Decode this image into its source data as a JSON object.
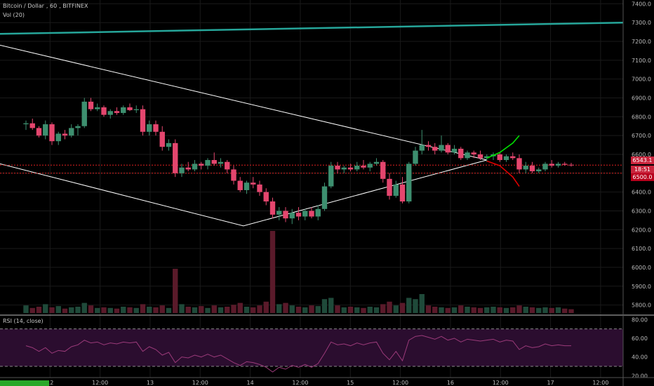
{
  "header": {
    "symbol": "Bitcoin / Dollar",
    "interval": "60",
    "exchange": "BITFINEX",
    "volume_label": "Vol (20)",
    "rsi_label": "RSI (14, close)"
  },
  "badges": {
    "price_1": "6543.1",
    "countdown": "18:51",
    "price_2": "6500.0"
  },
  "corner_badge": "",
  "colors": {
    "background": "#000000",
    "grid": "#1a1a1a",
    "up_candle": "#3d8f6f",
    "down_candle": "#e4466e",
    "trendline": "#ffffff",
    "long_ma": "#26a69a",
    "support_line": "#e02020",
    "projection_up": "#00e000",
    "projection_down": "#e00000",
    "rsi_band": "#2b0d2f",
    "rsi_line": "#9b3a7a"
  },
  "chart_data": {
    "type": "candlestick",
    "symbol": "Bitcoin / Dollar",
    "interval": "60",
    "exchange": "BITFINEX",
    "price_axis": {
      "ticks": [
        5800,
        5900,
        6000,
        6100,
        6200,
        6300,
        6400,
        6500,
        6600,
        6700,
        6800,
        6900,
        7000,
        7100,
        7200,
        7300,
        7400
      ],
      "ylim": [
        5750,
        7420
      ]
    },
    "time_axis": {
      "labels": [
        "12",
        "12:00",
        "13",
        "12:00",
        "14",
        "12:00",
        "15",
        "12:00",
        "16",
        "12:00",
        "17",
        "12:00"
      ],
      "xlim": [
        -4,
        92
      ]
    },
    "candles": [
      [
        6760,
        6780,
        6730,
        6765
      ],
      [
        6765,
        6790,
        6730,
        6740
      ],
      [
        6740,
        6750,
        6690,
        6700
      ],
      [
        6700,
        6780,
        6680,
        6760
      ],
      [
        6760,
        6770,
        6650,
        6670
      ],
      [
        6670,
        6720,
        6650,
        6710
      ],
      [
        6710,
        6730,
        6680,
        6700
      ],
      [
        6700,
        6760,
        6690,
        6740
      ],
      [
        6740,
        6760,
        6700,
        6750
      ],
      [
        6750,
        6900,
        6740,
        6880
      ],
      [
        6880,
        6900,
        6830,
        6840
      ],
      [
        6840,
        6870,
        6830,
        6850
      ],
      [
        6850,
        6860,
        6800,
        6810
      ],
      [
        6810,
        6840,
        6790,
        6830
      ],
      [
        6830,
        6850,
        6810,
        6820
      ],
      [
        6820,
        6860,
        6810,
        6850
      ],
      [
        6850,
        6870,
        6830,
        6835
      ],
      [
        6835,
        6860,
        6820,
        6840
      ],
      [
        6840,
        6860,
        6700,
        6720
      ],
      [
        6720,
        6780,
        6700,
        6760
      ],
      [
        6760,
        6780,
        6700,
        6720
      ],
      [
        6720,
        6750,
        6620,
        6640
      ],
      [
        6640,
        6680,
        6620,
        6660
      ],
      [
        6660,
        6680,
        6480,
        6500
      ],
      [
        6500,
        6550,
        6480,
        6530
      ],
      [
        6530,
        6560,
        6510,
        6520
      ],
      [
        6520,
        6570,
        6510,
        6550
      ],
      [
        6550,
        6560,
        6520,
        6540
      ],
      [
        6540,
        6580,
        6520,
        6570
      ],
      [
        6570,
        6610,
        6540,
        6550
      ],
      [
        6550,
        6580,
        6530,
        6560
      ],
      [
        6560,
        6570,
        6500,
        6520
      ],
      [
        6520,
        6540,
        6440,
        6460
      ],
      [
        6460,
        6480,
        6400,
        6410
      ],
      [
        6410,
        6460,
        6390,
        6450
      ],
      [
        6450,
        6480,
        6420,
        6440
      ],
      [
        6440,
        6460,
        6380,
        6400
      ],
      [
        6400,
        6420,
        6330,
        6350
      ],
      [
        6350,
        6370,
        6260,
        6280
      ],
      [
        6280,
        6320,
        6250,
        6300
      ],
      [
        6300,
        6320,
        6240,
        6260
      ],
      [
        6260,
        6310,
        6230,
        6290
      ],
      [
        6290,
        6320,
        6250,
        6270
      ],
      [
        6270,
        6310,
        6250,
        6300
      ],
      [
        6300,
        6320,
        6260,
        6270
      ],
      [
        6270,
        6330,
        6250,
        6310
      ],
      [
        6310,
        6450,
        6300,
        6430
      ],
      [
        6430,
        6560,
        6420,
        6540
      ],
      [
        6540,
        6560,
        6500,
        6520
      ],
      [
        6520,
        6540,
        6500,
        6530
      ],
      [
        6530,
        6550,
        6510,
        6520
      ],
      [
        6520,
        6560,
        6510,
        6540
      ],
      [
        6540,
        6570,
        6520,
        6530
      ],
      [
        6530,
        6560,
        6510,
        6550
      ],
      [
        6550,
        6580,
        6540,
        6560
      ],
      [
        6560,
        6570,
        6450,
        6470
      ],
      [
        6470,
        6500,
        6360,
        6380
      ],
      [
        6380,
        6460,
        6370,
        6440
      ],
      [
        6440,
        6480,
        6340,
        6350
      ],
      [
        6350,
        6560,
        6340,
        6550
      ],
      [
        6550,
        6640,
        6540,
        6620
      ],
      [
        6620,
        6730,
        6600,
        6650
      ],
      [
        6650,
        6670,
        6620,
        6640
      ],
      [
        6640,
        6660,
        6600,
        6620
      ],
      [
        6620,
        6700,
        6610,
        6650
      ],
      [
        6650,
        6660,
        6600,
        6610
      ],
      [
        6610,
        6650,
        6600,
        6630
      ],
      [
        6630,
        6640,
        6570,
        6580
      ],
      [
        6580,
        6620,
        6570,
        6610
      ],
      [
        6610,
        6620,
        6580,
        6600
      ],
      [
        6600,
        6620,
        6570,
        6580
      ],
      [
        6580,
        6600,
        6560,
        6590
      ],
      [
        6590,
        6610,
        6570,
        6600
      ],
      [
        6600,
        6610,
        6560,
        6570
      ],
      [
        6570,
        6600,
        6560,
        6590
      ],
      [
        6590,
        6610,
        6570,
        6580
      ],
      [
        6580,
        6600,
        6500,
        6520
      ],
      [
        6520,
        6560,
        6500,
        6540
      ],
      [
        6540,
        6560,
        6500,
        6510
      ],
      [
        6510,
        6530,
        6500,
        6520
      ],
      [
        6520,
        6560,
        6510,
        6550
      ],
      [
        6550,
        6570,
        6530,
        6540
      ],
      [
        6540,
        6560,
        6530,
        6550
      ],
      [
        6550,
        6560,
        6540,
        6545
      ],
      [
        6545,
        6555,
        6535,
        6543
      ]
    ],
    "volumes": [
      12,
      8,
      10,
      14,
      9,
      11,
      7,
      9,
      10,
      16,
      12,
      8,
      9,
      8,
      7,
      10,
      9,
      8,
      14,
      10,
      9,
      12,
      8,
      70,
      14,
      10,
      9,
      11,
      8,
      12,
      9,
      10,
      13,
      16,
      10,
      9,
      12,
      18,
      130,
      14,
      16,
      12,
      10,
      9,
      12,
      11,
      22,
      24,
      12,
      9,
      10,
      9,
      8,
      10,
      9,
      14,
      18,
      12,
      16,
      24,
      22,
      30,
      12,
      10,
      9,
      8,
      9,
      12,
      10,
      9,
      8,
      9,
      10,
      9,
      8,
      9,
      12,
      10,
      9,
      8,
      9,
      8,
      9,
      7,
      6
    ],
    "rsi": {
      "ticks": [
        20,
        40,
        60,
        80
      ],
      "ylim": [
        18,
        84
      ],
      "band": [
        30,
        70
      ],
      "values": [
        52,
        50,
        46,
        50,
        44,
        47,
        46,
        51,
        53,
        58,
        55,
        56,
        53,
        55,
        54,
        56,
        55,
        56,
        46,
        51,
        48,
        42,
        45,
        34,
        40,
        39,
        42,
        40,
        43,
        40,
        42,
        38,
        34,
        31,
        35,
        34,
        32,
        29,
        24,
        29,
        27,
        31,
        29,
        32,
        29,
        33,
        44,
        56,
        53,
        54,
        52,
        55,
        53,
        55,
        56,
        44,
        37,
        46,
        36,
        58,
        62,
        63,
        61,
        59,
        62,
        58,
        60,
        56,
        59,
        58,
        57,
        58,
        59,
        56,
        58,
        57,
        48,
        52,
        50,
        51,
        54,
        52,
        53,
        52,
        52
      ]
    },
    "trendlines": [
      {
        "name": "descending-resistance",
        "points": [
          [
            -4,
            7180
          ],
          [
            71,
            6570
          ]
        ]
      },
      {
        "name": "ascending-support",
        "points": [
          [
            -4,
            6550
          ],
          [
            33.5,
            6220
          ],
          [
            71,
            6570
          ]
        ]
      },
      {
        "name": "long-ma",
        "points": [
          [
            -4,
            7240
          ],
          [
            92,
            7300
          ]
        ]
      },
      {
        "name": "support-6500",
        "y": 6500
      },
      {
        "name": "price-line",
        "y": 6543.1
      }
    ],
    "projections": [
      {
        "name": "bullish",
        "points": [
          [
            71,
            6580
          ],
          [
            73,
            6610
          ],
          [
            75,
            6660
          ],
          [
            76,
            6700
          ]
        ]
      },
      {
        "name": "bearish",
        "points": [
          [
            71,
            6565
          ],
          [
            73,
            6540
          ],
          [
            75,
            6480
          ],
          [
            76,
            6430
          ]
        ]
      }
    ]
  }
}
